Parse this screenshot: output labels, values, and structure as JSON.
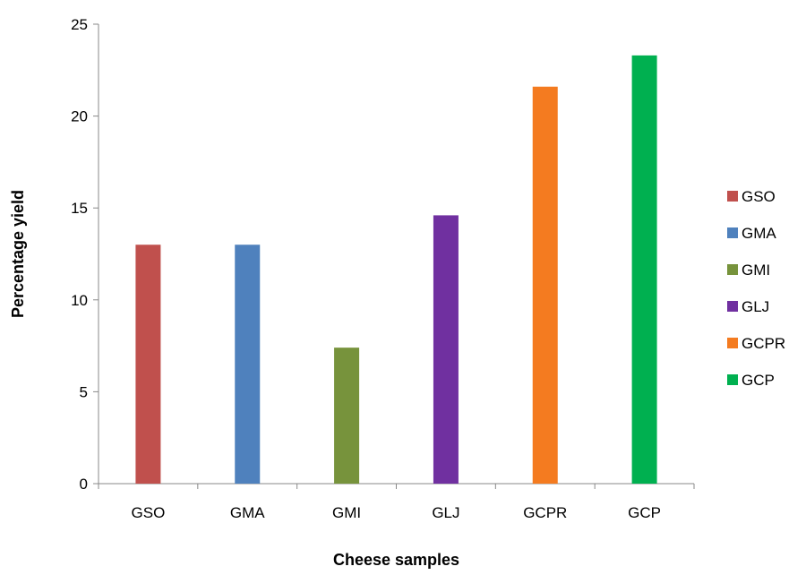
{
  "chart_data": {
    "type": "bar",
    "categories": [
      "GSO",
      "GMA",
      "GMI",
      "GLJ",
      "GCPR",
      "GCP"
    ],
    "values": [
      13.0,
      13.0,
      7.4,
      14.6,
      21.6,
      23.3
    ],
    "colors": [
      "#c0504d",
      "#4f81bd",
      "#77933c",
      "#7030a0",
      "#f47b20",
      "#00b050"
    ],
    "xlabel": "Cheese samples",
    "ylabel": "Percentage yield",
    "ylim": [
      0,
      25
    ],
    "yticks": [
      0,
      5,
      10,
      15,
      20,
      25
    ],
    "grid": false,
    "legend": {
      "position": "right",
      "entries": [
        "GSO",
        "GMA",
        "GMI",
        "GLJ",
        "GCPR",
        "GCP"
      ]
    }
  }
}
